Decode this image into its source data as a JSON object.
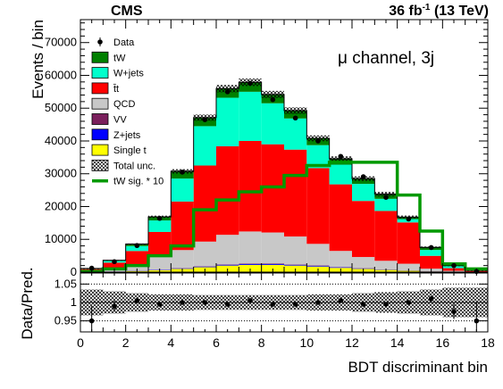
{
  "header": {
    "experiment": "CMS",
    "lumi_prefix": "36 fb",
    "lumi_exp": "-1",
    "lumi_suffix": " (13 TeV)"
  },
  "annotation": "μ channel, 3j",
  "chart_data": [
    {
      "type": "area",
      "stacked": true,
      "binned": true,
      "x": [
        0,
        1,
        2,
        3,
        4,
        5,
        6,
        7,
        8,
        9,
        10,
        11,
        12,
        13,
        14,
        15,
        16,
        17
      ],
      "bin_width": 1,
      "xlim": [
        0,
        18
      ],
      "ylim": [
        0,
        77000
      ],
      "ylabel": "Events / bin",
      "yticks": [
        0,
        10000,
        20000,
        30000,
        40000,
        50000,
        60000,
        70000
      ],
      "xticks": [
        0,
        2,
        4,
        6,
        8,
        10,
        12,
        14,
        16,
        18
      ],
      "legend_position": "top-left",
      "series": [
        {
          "name": "Single t",
          "color": "#ffff00",
          "values": [
            20,
            150,
            350,
            600,
            1000,
            1500,
            2000,
            2200,
            2200,
            2000,
            1700,
            1300,
            1000,
            700,
            450,
            200,
            80,
            20
          ]
        },
        {
          "name": "Z+jets",
          "color": "#0000ff",
          "values": [
            5,
            30,
            60,
            100,
            150,
            200,
            250,
            260,
            250,
            230,
            200,
            170,
            130,
            100,
            70,
            40,
            15,
            5
          ]
        },
        {
          "name": "VV",
          "color": "#7a1f5c",
          "values": [
            5,
            20,
            40,
            60,
            80,
            110,
            130,
            140,
            140,
            130,
            120,
            100,
            80,
            60,
            40,
            25,
            10,
            5
          ]
        },
        {
          "name": "QCD",
          "color": "#c8c8c8",
          "values": [
            200,
            700,
            2000,
            4000,
            5500,
            7500,
            9000,
            9800,
            9500,
            8500,
            6600,
            4900,
            3400,
            2600,
            2000,
            800,
            300,
            100
          ]
        },
        {
          "name": "t̄t",
          "color": "#ff0000",
          "values": [
            700,
            2000,
            4000,
            7500,
            14800,
            23200,
            27000,
            27600,
            26900,
            26500,
            23100,
            20300,
            17100,
            15200,
            12600,
            3900,
            800,
            250
          ]
        },
        {
          "name": "W+jets",
          "color": "#00ffcc",
          "values": [
            150,
            500,
            1500,
            3500,
            7000,
            12000,
            14800,
            15000,
            12500,
            9500,
            7000,
            6000,
            5200,
            3700,
            1000,
            1800,
            600,
            120
          ]
        },
        {
          "name": "tW",
          "color": "#008000",
          "values": [
            30,
            200,
            600,
            1100,
            2200,
            2600,
            2800,
            2900,
            2700,
            2400,
            2100,
            1800,
            1600,
            1450,
            600,
            800,
            200,
            60
          ]
        }
      ],
      "data_points": {
        "name": "Data",
        "values": [
          1200,
          3200,
          8100,
          16400,
          30500,
          46500,
          55000,
          57600,
          52600,
          47000,
          40000,
          35300,
          29100,
          22800,
          16200,
          7500,
          2000,
          200
        ]
      },
      "total_unc": {
        "name": "Total unc.",
        "rel": [
          0.035,
          0.03,
          0.025,
          0.022,
          0.022,
          0.02,
          0.02,
          0.02,
          0.02,
          0.02,
          0.022,
          0.022,
          0.025,
          0.028,
          0.03,
          0.035,
          0.04,
          0.04
        ]
      },
      "overlay": {
        "name": "tW sig. * 10",
        "color": "#009900",
        "values": [
          200,
          1000,
          2000,
          5000,
          8000,
          19000,
          22000,
          24500,
          26000,
          29500,
          32500,
          33500,
          33500,
          33500,
          23500,
          12500,
          2500,
          1000
        ]
      }
    },
    {
      "type": "scatter",
      "binned": true,
      "ylabel": "Data/Pred.",
      "xlabel": "BDT discriminant bin",
      "xlim": [
        0,
        18
      ],
      "ylim": [
        0.92,
        1.08
      ],
      "yticks": [
        0.95,
        1,
        1.05
      ],
      "ytick_labels": [
        "0.95",
        "1",
        "1.05"
      ],
      "ratio": [
        0.95,
        0.99,
        1.005,
        0.995,
        1.0,
        1.0,
        0.995,
        1.005,
        0.995,
        0.995,
        1.0,
        1.005,
        0.995,
        0.995,
        1.0,
        1.01,
        0.975,
        0.95
      ],
      "ratio_err": [
        0.04,
        0.015,
        0.008,
        0.005,
        0.004,
        0.003,
        0.003,
        0.003,
        0.003,
        0.003,
        0.003,
        0.003,
        0.004,
        0.004,
        0.005,
        0.008,
        0.02,
        0.05
      ]
    }
  ]
}
